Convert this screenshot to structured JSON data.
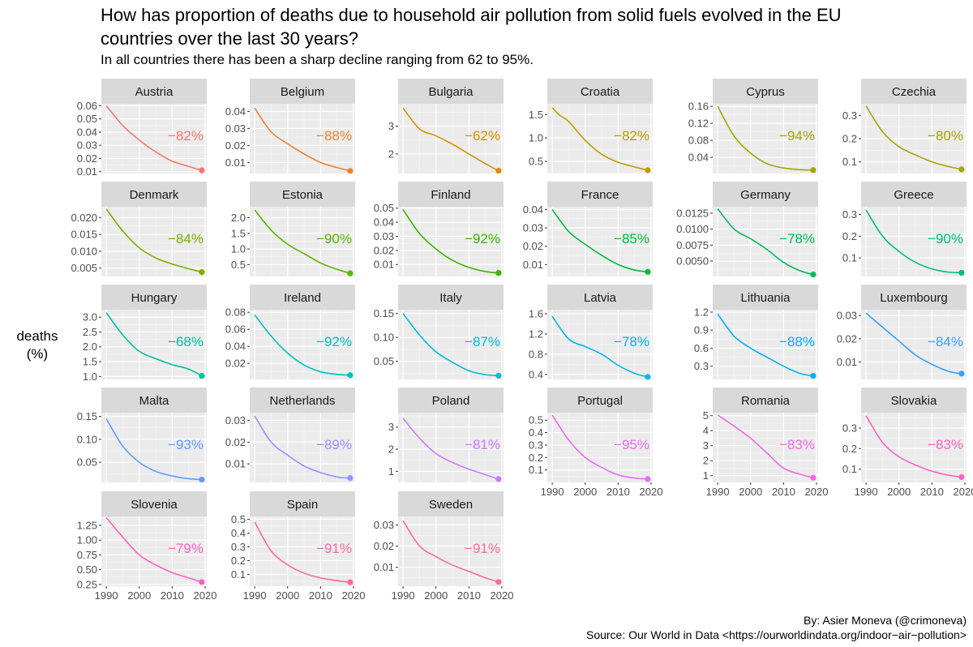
{
  "title": "How has proportion of deaths due to household air pollution from solid fuels evolved in the EU countries over the last 30 years?",
  "subtitle": "In all countries there has been a sharp decline ranging from 62 to 95%.",
  "ylabel": "deaths\n(%)",
  "credit_author": "By: Asier Moneva (@crimoneva)",
  "credit_source": "Source: Our World in Data <https://ourworldindata.org/indoor−air−pollution>",
  "chart_data": {
    "type": "line",
    "facet": "small-multiples",
    "x_ticks": [
      "1990",
      "2000",
      "2010",
      "2020"
    ],
    "x_range": [
      1990,
      2019
    ],
    "grid": true,
    "panels": [
      {
        "country": "Austria",
        "pct": "−82%",
        "color": "#F8766D",
        "y_ticks": [
          "0.06",
          "0.05",
          "0.04",
          "0.03",
          "0.02",
          "0.01"
        ],
        "y_tick_values": [
          0.06,
          0.05,
          0.04,
          0.03,
          0.02,
          0.01
        ],
        "ylim": [
          0.0086,
          0.0615
        ],
        "x": [
          1990,
          1995,
          2000,
          2005,
          2010,
          2015,
          2019
        ],
        "y": [
          0.06,
          0.045,
          0.034,
          0.025,
          0.018,
          0.014,
          0.011
        ]
      },
      {
        "country": "Belgium",
        "pct": "−88%",
        "color": "#EA8331",
        "y_ticks": [
          "0.04",
          "0.03",
          "0.02",
          "0.01"
        ],
        "y_tick_values": [
          0.04,
          0.03,
          0.02,
          0.01
        ],
        "ylim": [
          0.0035,
          0.0445
        ],
        "x": [
          1990,
          1995,
          2000,
          2005,
          2010,
          2015,
          2019
        ],
        "y": [
          0.042,
          0.028,
          0.021,
          0.015,
          0.01,
          0.007,
          0.005
        ]
      },
      {
        "country": "Bulgaria",
        "pct": "−62%",
        "color": "#D89000",
        "y_ticks": [
          "3",
          "2"
        ],
        "y_tick_values": [
          3,
          2
        ],
        "ylim": [
          1.3,
          3.8
        ],
        "x": [
          1990,
          1995,
          2000,
          2005,
          2010,
          2015,
          2019
        ],
        "y": [
          3.65,
          2.9,
          2.65,
          2.35,
          2.0,
          1.65,
          1.4
        ]
      },
      {
        "country": "Croatia",
        "pct": "−82%",
        "color": "#C09B00",
        "y_ticks": [
          "1.5",
          "1.0",
          "0.5"
        ],
        "y_tick_values": [
          1.5,
          1.0,
          0.5
        ],
        "ylim": [
          0.24,
          1.73
        ],
        "x": [
          1990,
          1992,
          1995,
          2000,
          2005,
          2010,
          2015,
          2019
        ],
        "y": [
          1.65,
          1.5,
          1.35,
          0.95,
          0.65,
          0.48,
          0.38,
          0.31
        ]
      },
      {
        "country": "Cyprus",
        "pct": "−94%",
        "color": "#A3A500",
        "y_ticks": [
          "0.16",
          "0.12",
          "0.08",
          "0.04"
        ],
        "y_tick_values": [
          0.16,
          0.12,
          0.08,
          0.04
        ],
        "ylim": [
          0.002,
          0.166
        ],
        "x": [
          1990,
          1995,
          2000,
          2005,
          2010,
          2015,
          2019
        ],
        "y": [
          0.16,
          0.09,
          0.05,
          0.025,
          0.015,
          0.011,
          0.01
        ]
      },
      {
        "country": "Czechia",
        "pct": "−80%",
        "color": "#A3A500",
        "y_ticks": [
          "0.3",
          "0.2",
          "0.1"
        ],
        "y_tick_values": [
          0.3,
          0.2,
          0.1
        ],
        "ylim": [
          0.05,
          0.35
        ],
        "x": [
          1990,
          1995,
          2000,
          2005,
          2010,
          2015,
          2019
        ],
        "y": [
          0.34,
          0.23,
          0.165,
          0.13,
          0.1,
          0.08,
          0.068
        ]
      },
      {
        "country": "Denmark",
        "pct": "−84%",
        "color": "#7CAE00",
        "y_ticks": [
          "0.020",
          "0.015",
          "0.010",
          "0.005"
        ],
        "y_tick_values": [
          0.02,
          0.015,
          0.01,
          0.005
        ],
        "ylim": [
          0.0025,
          0.0232
        ],
        "x": [
          1990,
          1995,
          2000,
          2005,
          2010,
          2015,
          2019
        ],
        "y": [
          0.0225,
          0.016,
          0.011,
          0.008,
          0.0062,
          0.0048,
          0.0038
        ]
      },
      {
        "country": "Estonia",
        "pct": "−90%",
        "color": "#5EB300",
        "y_ticks": [
          "2.0",
          "1.5",
          "1.0",
          "0.5"
        ],
        "y_tick_values": [
          2.0,
          1.5,
          1.0,
          0.5
        ],
        "ylim": [
          0.12,
          2.35
        ],
        "x": [
          1990,
          1995,
          2000,
          2005,
          2010,
          2015,
          2019
        ],
        "y": [
          2.25,
          1.6,
          1.15,
          0.85,
          0.55,
          0.35,
          0.22
        ]
      },
      {
        "country": "Finland",
        "pct": "−92%",
        "color": "#39B600",
        "y_ticks": [
          "0.05",
          "0.04",
          "0.03",
          "0.02",
          "0.01"
        ],
        "y_tick_values": [
          0.05,
          0.04,
          0.03,
          0.02,
          0.01
        ],
        "ylim": [
          0.0015,
          0.051
        ],
        "x": [
          1990,
          1995,
          2000,
          2005,
          2010,
          2015,
          2019
        ],
        "y": [
          0.049,
          0.032,
          0.021,
          0.013,
          0.008,
          0.005,
          0.004
        ]
      },
      {
        "country": "France",
        "pct": "−85%",
        "color": "#00BA38",
        "y_ticks": [
          "0.04",
          "0.03",
          "0.02",
          "0.01"
        ],
        "y_tick_values": [
          0.04,
          0.03,
          0.02,
          0.01
        ],
        "ylim": [
          0.0035,
          0.0415
        ],
        "x": [
          1990,
          1995,
          2000,
          2005,
          2010,
          2015,
          2019
        ],
        "y": [
          0.04,
          0.028,
          0.021,
          0.015,
          0.01,
          0.007,
          0.006
        ]
      },
      {
        "country": "Germany",
        "pct": "−78%",
        "color": "#00BC59",
        "y_ticks": [
          "0.0125",
          "0.0100",
          "0.0075",
          "0.0050"
        ],
        "y_tick_values": [
          0.0125,
          0.01,
          0.0075,
          0.005
        ],
        "ylim": [
          0.0026,
          0.0135
        ],
        "x": [
          1990,
          1995,
          2000,
          2005,
          2010,
          2015,
          2019
        ],
        "y": [
          0.0132,
          0.01,
          0.0085,
          0.0068,
          0.0048,
          0.0035,
          0.0029
        ]
      },
      {
        "country": "Greece",
        "pct": "−90%",
        "color": "#00BF7D",
        "y_ticks": [
          "0.3",
          "0.2",
          "0.1"
        ],
        "y_tick_values": [
          0.3,
          0.2,
          0.1
        ],
        "ylim": [
          0.015,
          0.335
        ],
        "x": [
          1990,
          1995,
          2000,
          2005,
          2010,
          2015,
          2019
        ],
        "y": [
          0.32,
          0.2,
          0.13,
          0.08,
          0.05,
          0.035,
          0.032
        ]
      },
      {
        "country": "Hungary",
        "pct": "−68%",
        "color": "#00BFA0",
        "y_ticks": [
          "3.0",
          "2.5",
          "2.0",
          "1.5",
          "1.0"
        ],
        "y_tick_values": [
          3.0,
          2.5,
          2.0,
          1.5,
          1.0
        ],
        "ylim": [
          0.9,
          3.25
        ],
        "x": [
          1990,
          1995,
          2000,
          2005,
          2010,
          2015,
          2019
        ],
        "y": [
          3.15,
          2.4,
          1.85,
          1.6,
          1.4,
          1.25,
          1.02
        ]
      },
      {
        "country": "Ireland",
        "pct": "−92%",
        "color": "#00BFC4",
        "y_ticks": [
          "0.08",
          "0.06",
          "0.04",
          "0.02"
        ],
        "y_tick_values": [
          0.08,
          0.06,
          0.04,
          0.02
        ],
        "ylim": [
          0.001,
          0.083
        ],
        "x": [
          1990,
          1995,
          2000,
          2005,
          2010,
          2015,
          2019
        ],
        "y": [
          0.077,
          0.052,
          0.032,
          0.018,
          0.01,
          0.007,
          0.006
        ]
      },
      {
        "country": "Italy",
        "pct": "−87%",
        "color": "#00BCD8",
        "y_ticks": [
          "0.15",
          "0.10",
          "0.05"
        ],
        "y_tick_values": [
          0.15,
          0.1,
          0.05
        ],
        "ylim": [
          0.012,
          0.158
        ],
        "x": [
          1990,
          1995,
          2000,
          2005,
          2010,
          2015,
          2019
        ],
        "y": [
          0.15,
          0.105,
          0.07,
          0.048,
          0.03,
          0.022,
          0.02
        ]
      },
      {
        "country": "Latvia",
        "pct": "−78%",
        "color": "#00B8E7",
        "y_ticks": [
          "1.6",
          "1.2",
          "0.8",
          "0.4"
        ],
        "y_tick_values": [
          1.6,
          1.2,
          0.8,
          0.4
        ],
        "ylim": [
          0.3,
          1.68
        ],
        "x": [
          1990,
          1995,
          2000,
          2005,
          2010,
          2015,
          2019
        ],
        "y": [
          1.55,
          1.1,
          0.95,
          0.8,
          0.58,
          0.42,
          0.35
        ]
      },
      {
        "country": "Lithuania",
        "pct": "−88%",
        "color": "#00B0F6",
        "y_ticks": [
          "1.2",
          "0.9",
          "0.6",
          "0.3"
        ],
        "y_tick_values": [
          1.2,
          0.9,
          0.6,
          0.3
        ],
        "ylim": [
          0.08,
          1.24
        ],
        "x": [
          1990,
          1995,
          2000,
          2005,
          2010,
          2015,
          2019
        ],
        "y": [
          1.17,
          0.8,
          0.6,
          0.45,
          0.3,
          0.18,
          0.14
        ]
      },
      {
        "country": "Luxembourg",
        "pct": "−84%",
        "color": "#35A2FF",
        "y_ticks": [
          "0.03",
          "0.02",
          "0.01"
        ],
        "y_tick_values": [
          0.03,
          0.02,
          0.01
        ],
        "ylim": [
          0.0025,
          0.0325
        ],
        "x": [
          1990,
          1995,
          2000,
          2005,
          2010,
          2015,
          2019
        ],
        "y": [
          0.031,
          0.025,
          0.019,
          0.013,
          0.009,
          0.006,
          0.005
        ]
      },
      {
        "country": "Malta",
        "pct": "−93%",
        "color": "#619CFF",
        "y_ticks": [
          "0.15",
          "0.10",
          "0.05"
        ],
        "y_tick_values": [
          0.15,
          0.1,
          0.05
        ],
        "ylim": [
          0.006,
          0.158
        ],
        "x": [
          1990,
          1995,
          2000,
          2005,
          2010,
          2015,
          2019
        ],
        "y": [
          0.145,
          0.085,
          0.05,
          0.03,
          0.02,
          0.014,
          0.012
        ]
      },
      {
        "country": "Netherlands",
        "pct": "−89%",
        "color": "#9590FF",
        "y_ticks": [
          "0.03",
          "0.02",
          "0.01"
        ],
        "y_tick_values": [
          0.03,
          0.02,
          0.01
        ],
        "ylim": [
          0.0015,
          0.0335
        ],
        "x": [
          1990,
          1995,
          2000,
          2005,
          2010,
          2015,
          2019
        ],
        "y": [
          0.032,
          0.02,
          0.014,
          0.009,
          0.006,
          0.004,
          0.0035
        ]
      },
      {
        "country": "Poland",
        "pct": "−81%",
        "color": "#C77CFF",
        "y_ticks": [
          "3",
          "2",
          "1"
        ],
        "y_tick_values": [
          3,
          2,
          1
        ],
        "ylim": [
          0.5,
          3.65
        ],
        "x": [
          1990,
          1995,
          2000,
          2005,
          2010,
          2015,
          2019
        ],
        "y": [
          3.4,
          2.5,
          1.8,
          1.4,
          1.1,
          0.85,
          0.65
        ]
      },
      {
        "country": "Portugal",
        "pct": "−95%",
        "color": "#E76BF3",
        "y_ticks": [
          "0.5",
          "0.4",
          "0.3",
          "0.2",
          "0.1"
        ],
        "y_tick_values": [
          0.5,
          0.4,
          0.3,
          0.2,
          0.1
        ],
        "ylim": [
          0.0,
          0.56
        ],
        "x": [
          1990,
          1995,
          2000,
          2005,
          2010,
          2015,
          2019
        ],
        "y": [
          0.54,
          0.34,
          0.2,
          0.12,
          0.06,
          0.035,
          0.027
        ]
      },
      {
        "country": "Romania",
        "pct": "−83%",
        "color": "#F564E3",
        "y_ticks": [
          "5",
          "4",
          "3",
          "2",
          "1"
        ],
        "y_tick_values": [
          5,
          4,
          3,
          2,
          1
        ],
        "ylim": [
          0.55,
          5.2
        ],
        "x": [
          1990,
          1995,
          2000,
          2005,
          2010,
          2015,
          2019
        ],
        "y": [
          5.05,
          4.3,
          3.5,
          2.5,
          1.5,
          1.1,
          0.86
        ]
      },
      {
        "country": "Slovakia",
        "pct": "−83%",
        "color": "#FF61C3",
        "y_ticks": [
          "0.3",
          "0.2",
          "0.1"
        ],
        "y_tick_values": [
          0.3,
          0.2,
          0.1
        ],
        "ylim": [
          0.035,
          0.375
        ],
        "x": [
          1990,
          1995,
          2000,
          2005,
          2010,
          2015,
          2019
        ],
        "y": [
          0.36,
          0.23,
          0.16,
          0.12,
          0.09,
          0.07,
          0.061
        ]
      },
      {
        "country": "Slovenia",
        "pct": "−79%",
        "color": "#FF61C3",
        "y_ticks": [
          "1.25",
          "1.00",
          "0.75",
          "0.50",
          "0.25"
        ],
        "y_tick_values": [
          1.25,
          1.0,
          0.75,
          0.5,
          0.25
        ],
        "ylim": [
          0.22,
          1.4
        ],
        "x": [
          1990,
          1995,
          2000,
          2005,
          2010,
          2015,
          2019
        ],
        "y": [
          1.38,
          1.05,
          0.75,
          0.58,
          0.45,
          0.36,
          0.29
        ]
      },
      {
        "country": "Spain",
        "pct": "−91%",
        "color": "#FF67A4",
        "y_ticks": [
          "0.5",
          "0.4",
          "0.3",
          "0.2",
          "0.1"
        ],
        "y_tick_values": [
          0.5,
          0.4,
          0.3,
          0.2,
          0.1
        ],
        "ylim": [
          0.015,
          0.52
        ],
        "x": [
          1990,
          1995,
          2000,
          2005,
          2010,
          2015,
          2019
        ],
        "y": [
          0.48,
          0.27,
          0.17,
          0.11,
          0.075,
          0.055,
          0.043
        ]
      },
      {
        "country": "Sweden",
        "pct": "−91%",
        "color": "#FF6C91",
        "y_ticks": [
          "0.03",
          "0.02",
          "0.01"
        ],
        "y_tick_values": [
          0.03,
          0.02,
          0.01
        ],
        "ylim": [
          0.001,
          0.034
        ],
        "x": [
          1990,
          1995,
          2000,
          2005,
          2010,
          2015,
          2019
        ],
        "y": [
          0.032,
          0.02,
          0.015,
          0.011,
          0.008,
          0.005,
          0.003
        ]
      }
    ]
  }
}
